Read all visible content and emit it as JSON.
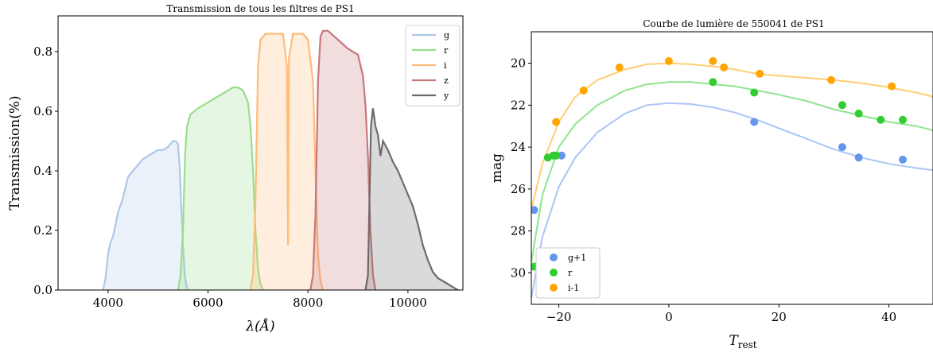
{
  "chart_data": [
    {
      "type": "area",
      "title": "Transmission de tous les filtres de PS1",
      "xlabel": "λ(Å)",
      "ylabel": "Transmission(%)",
      "xlim": [
        3000,
        11100
      ],
      "ylim": [
        0,
        0.92
      ],
      "xticks": [
        "4000",
        "6000",
        "8000",
        "10000"
      ],
      "xtick_values": [
        4000,
        6000,
        8000,
        10000
      ],
      "yticks": [
        "0.0",
        "0.2",
        "0.4",
        "0.6",
        "0.8"
      ],
      "ytick_values": [
        0,
        0.2,
        0.4,
        0.6,
        0.8
      ],
      "legend_position": "top-right",
      "series": [
        {
          "name": "g",
          "color": "#aec7e8",
          "x": [
            3900,
            3950,
            4000,
            4050,
            4100,
            4200,
            4300,
            4400,
            4500,
            4600,
            4700,
            4800,
            4900,
            5000,
            5100,
            5200,
            5300,
            5350,
            5400,
            5430,
            5460,
            5500,
            5530,
            5560,
            5600
          ],
          "y": [
            0,
            0.04,
            0.12,
            0.16,
            0.18,
            0.26,
            0.31,
            0.38,
            0.4,
            0.42,
            0.44,
            0.45,
            0.46,
            0.47,
            0.47,
            0.48,
            0.5,
            0.5,
            0.49,
            0.42,
            0.3,
            0.15,
            0.06,
            0.02,
            0
          ]
        },
        {
          "name": "r",
          "color": "#98df8a",
          "x": [
            5400,
            5450,
            5500,
            5540,
            5580,
            5650,
            5800,
            6000,
            6200,
            6400,
            6500,
            6600,
            6700,
            6800,
            6850,
            6900,
            6950,
            7000,
            7050,
            7100
          ],
          "y": [
            0,
            0.05,
            0.2,
            0.45,
            0.55,
            0.59,
            0.61,
            0.63,
            0.65,
            0.67,
            0.68,
            0.68,
            0.67,
            0.63,
            0.55,
            0.4,
            0.2,
            0.07,
            0.02,
            0
          ]
        },
        {
          "name": "i",
          "color": "#ffbb78",
          "x": [
            6850,
            6900,
            6950,
            7000,
            7050,
            7150,
            7300,
            7500,
            7580,
            7600,
            7620,
            7700,
            7900,
            8000,
            8100,
            8150,
            8200,
            8250,
            8300
          ],
          "y": [
            0,
            0.05,
            0.3,
            0.75,
            0.84,
            0.86,
            0.86,
            0.86,
            0.75,
            0.15,
            0.78,
            0.86,
            0.86,
            0.84,
            0.7,
            0.4,
            0.12,
            0.03,
            0
          ]
        },
        {
          "name": "z",
          "color": "#c8777a",
          "x": [
            8050,
            8100,
            8150,
            8200,
            8250,
            8300,
            8400,
            8600,
            8800,
            9000,
            9100,
            9150,
            9200,
            9250,
            9300,
            9350
          ],
          "y": [
            0,
            0.05,
            0.25,
            0.7,
            0.85,
            0.87,
            0.87,
            0.84,
            0.81,
            0.79,
            0.72,
            0.62,
            0.45,
            0.2,
            0.05,
            0
          ]
        },
        {
          "name": "y",
          "color": "#6b6b6b",
          "x": [
            9150,
            9200,
            9230,
            9260,
            9300,
            9350,
            9400,
            9450,
            9500,
            9600,
            9700,
            9800,
            9900,
            10000,
            10100,
            10200,
            10300,
            10400,
            10500,
            10600,
            10700,
            10800,
            10900,
            11000
          ],
          "y": [
            0,
            0.05,
            0.3,
            0.55,
            0.61,
            0.55,
            0.52,
            0.45,
            0.5,
            0.47,
            0.43,
            0.4,
            0.36,
            0.32,
            0.28,
            0.22,
            0.15,
            0.1,
            0.06,
            0.04,
            0.03,
            0.02,
            0.01,
            0
          ]
        }
      ]
    },
    {
      "type": "scatter",
      "title": "Courbe de lumière de 550041 de PS1",
      "xlabel": "T_rest",
      "ylabel": "mag",
      "xlim": [
        -25,
        48
      ],
      "ylim": [
        31.5,
        18.5
      ],
      "y_inverted": true,
      "xticks": [
        "−20",
        "0",
        "20",
        "40"
      ],
      "xtick_values": [
        -20,
        0,
        20,
        40
      ],
      "yticks": [
        "20",
        "22",
        "24",
        "26",
        "28",
        "30"
      ],
      "ytick_values": [
        20,
        22,
        24,
        26,
        28,
        30
      ],
      "legend_position": "bottom-left",
      "series": [
        {
          "name": "g+1",
          "color": "#6495ed",
          "x": [
            -24.5,
            -19.5,
            15.5,
            31.5,
            34.5,
            42.5
          ],
          "y": [
            27.0,
            24.4,
            22.8,
            24.0,
            24.5,
            24.6
          ],
          "curve_x": [
            -25,
            -23,
            -20,
            -17,
            -13,
            -8,
            -4,
            0,
            4,
            8,
            12,
            16,
            20,
            25,
            30,
            35,
            40,
            45,
            48
          ],
          "curve_y": [
            31.2,
            28.3,
            25.9,
            24.5,
            23.3,
            22.4,
            22.0,
            21.9,
            21.95,
            22.1,
            22.35,
            22.7,
            23.1,
            23.6,
            24.1,
            24.5,
            24.8,
            25.0,
            25.1
          ]
        },
        {
          "name": "r",
          "color": "#32cd32",
          "x": [
            -24.5,
            -22,
            -21,
            -20.5,
            8,
            15.5,
            31.5,
            34.5,
            38.5,
            42.5
          ],
          "y": [
            29.7,
            24.5,
            24.4,
            24.4,
            20.9,
            21.4,
            22.0,
            22.4,
            22.7,
            22.7
          ],
          "curve_x": [
            -25,
            -23,
            -20,
            -17,
            -13,
            -8,
            -4,
            0,
            4,
            8,
            12,
            16,
            20,
            25,
            30,
            35,
            40,
            45,
            48
          ],
          "curve_y": [
            29.5,
            26.3,
            24.0,
            22.9,
            22.0,
            21.3,
            21.0,
            20.9,
            20.9,
            21.0,
            21.1,
            21.3,
            21.5,
            21.8,
            22.2,
            22.5,
            22.8,
            23.0,
            23.2
          ]
        },
        {
          "name": "i-1",
          "color": "#ffa500",
          "x": [
            -20.5,
            -15.5,
            -9,
            0,
            8,
            10,
            16.5,
            29.5,
            40.5
          ],
          "y": [
            22.8,
            21.3,
            20.2,
            19.9,
            19.9,
            20.2,
            20.5,
            20.8,
            21.1
          ],
          "curve_x": [
            -25,
            -23,
            -20,
            -17,
            -13,
            -8,
            -4,
            0,
            4,
            8,
            12,
            16,
            20,
            25,
            30,
            35,
            40,
            45,
            48
          ],
          "curve_y": [
            27.0,
            24.8,
            22.8,
            21.6,
            20.8,
            20.3,
            20.05,
            20.0,
            20.05,
            20.15,
            20.3,
            20.5,
            20.6,
            20.7,
            20.8,
            20.95,
            21.15,
            21.4,
            21.6
          ]
        }
      ]
    }
  ]
}
